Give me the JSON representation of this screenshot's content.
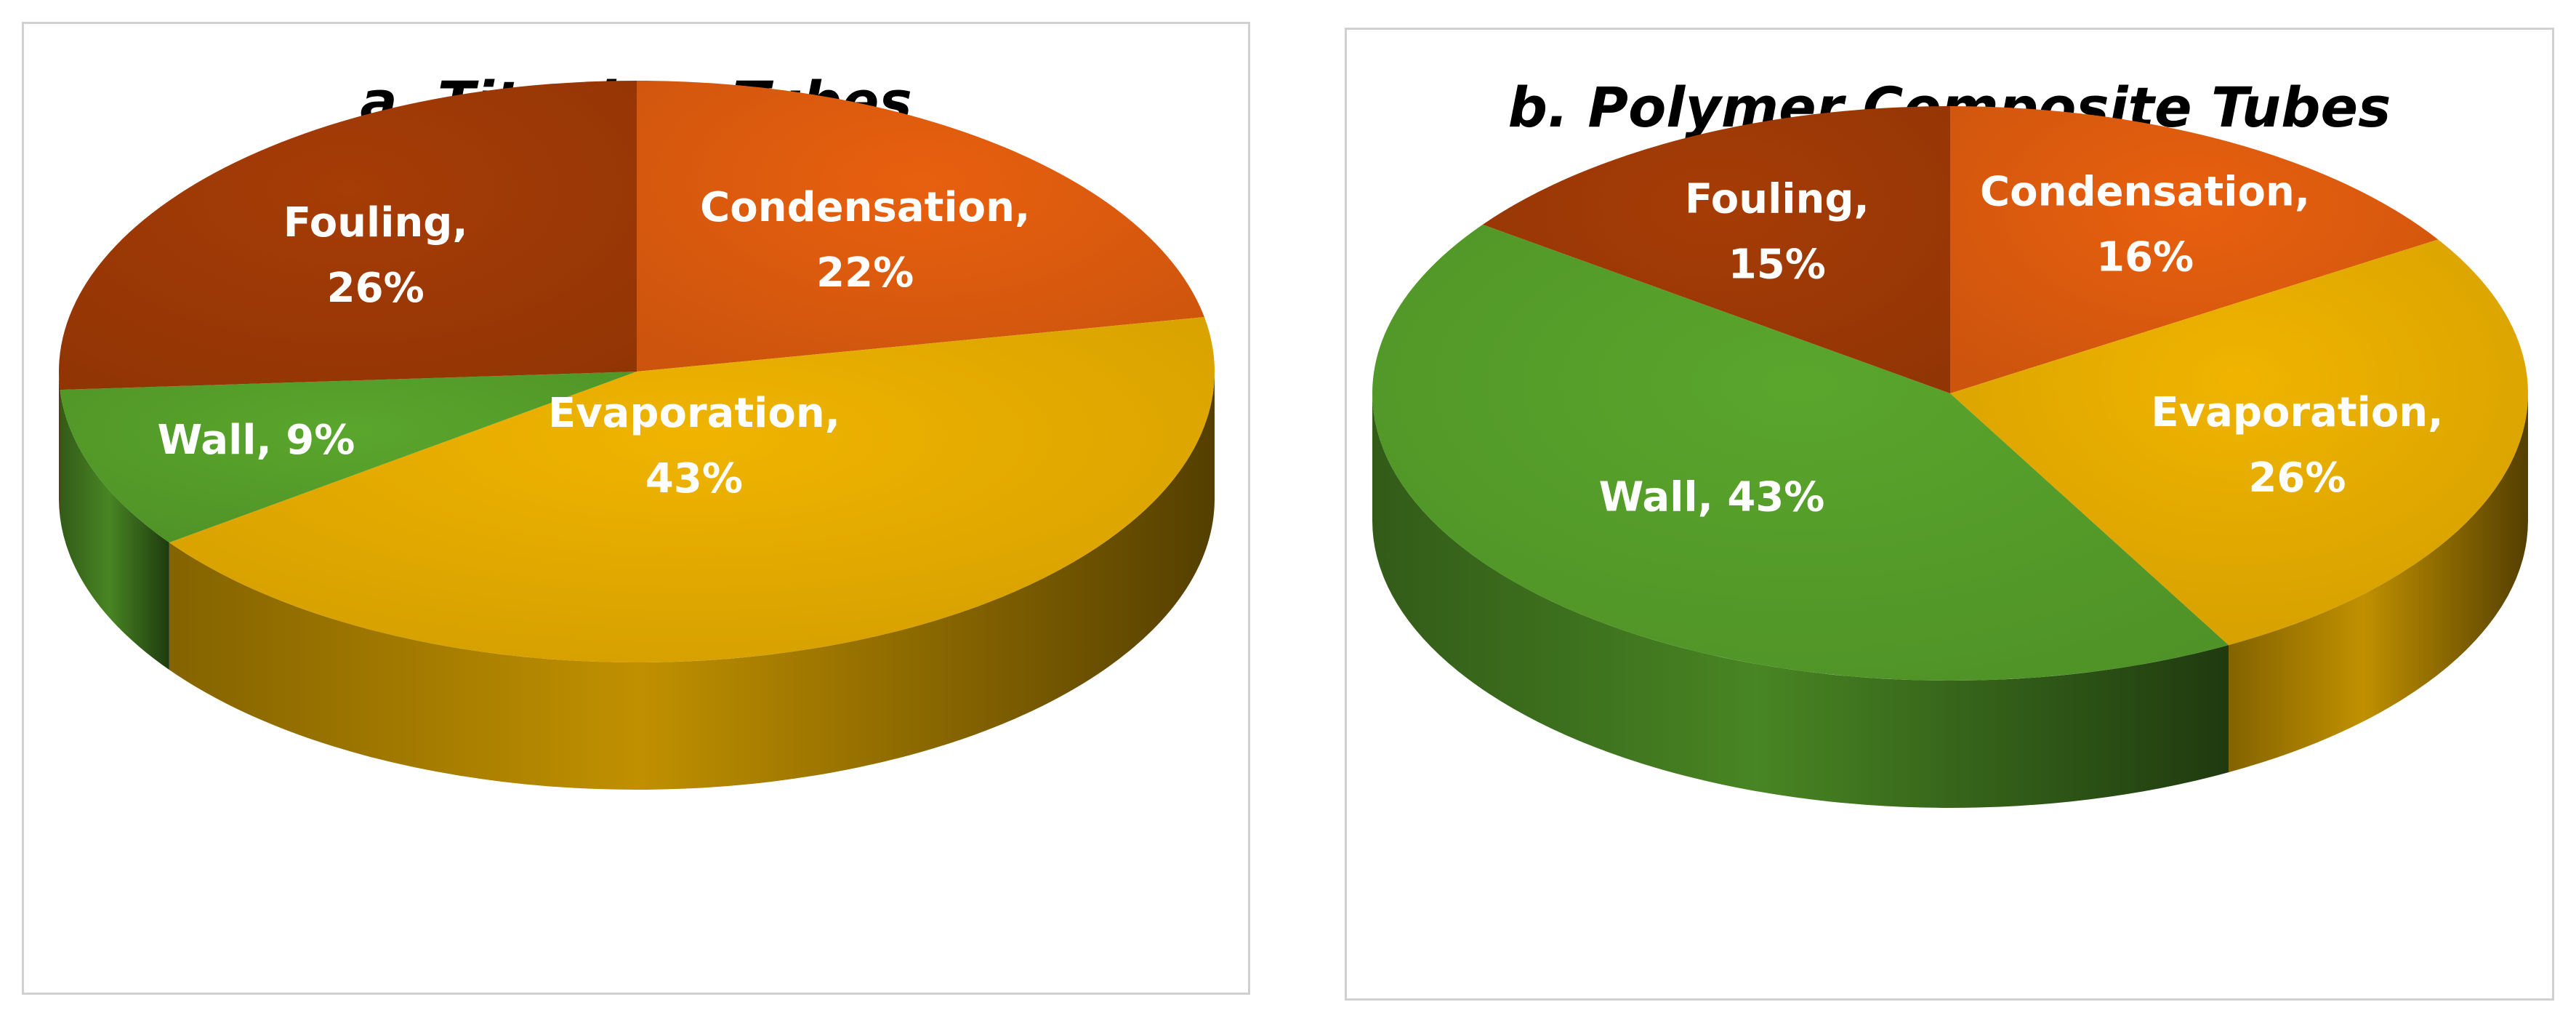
{
  "chart_data": [
    {
      "type": "pie",
      "title": "a. Titanium Tubes",
      "slices": [
        {
          "label": "Condensation",
          "value": 22,
          "display": "Condensation,|22%",
          "color": "#e8600f"
        },
        {
          "label": "Evaporation",
          "value": 43,
          "display": "Evaporation,|43%",
          "color": "#f0b400"
        },
        {
          "label": "Wall",
          "value": 9,
          "display": "Wall, 9%",
          "color": "#5aa62c"
        },
        {
          "label": "Fouling",
          "value": 26,
          "display": "Fouling,|26%",
          "color": "#a63c06"
        }
      ]
    },
    {
      "type": "pie",
      "title": "b. Polymer Composite  Tubes",
      "slices": [
        {
          "label": "Condensation",
          "value": 16,
          "display": "Condensation,|16%",
          "color": "#e8600f"
        },
        {
          "label": "Evaporation",
          "value": 26,
          "display": "Evaporation,|26%",
          "color": "#f0b400"
        },
        {
          "label": "Wall",
          "value": 43,
          "display": "Wall, 43%",
          "color": "#5aa62c"
        },
        {
          "label": "Fouling",
          "value": 15,
          "display": "Fouling,|15%",
          "color": "#a63c06"
        }
      ]
    }
  ]
}
